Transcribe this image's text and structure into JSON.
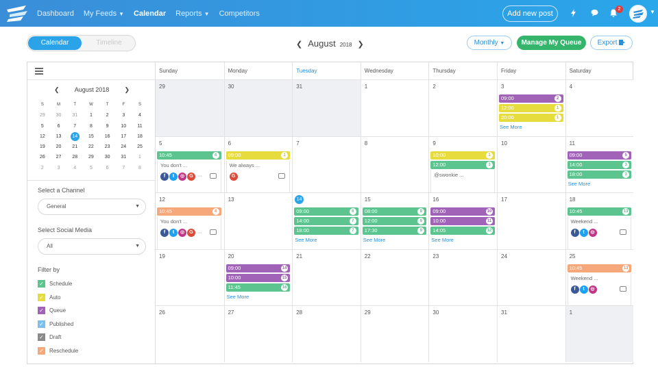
{
  "nav": {
    "dashboard": "Dashboard",
    "feeds": "My Feeds",
    "calendar": "Calendar",
    "reports": "Reports",
    "competitors": "Competitors",
    "add_post": "Add new post",
    "notif_count": "2"
  },
  "toolbar": {
    "calendar": "Calendar",
    "timeline": "Timeline",
    "month": "August",
    "year": "2018",
    "view": "Monthly",
    "manage_queue": "Manage My Queue",
    "export": "Export"
  },
  "mini_cal": {
    "title": "August 2018",
    "dows": [
      "S",
      "M",
      "T",
      "W",
      "T",
      "F",
      "S"
    ],
    "weeks": [
      [
        "29",
        "30",
        "31",
        "1",
        "2",
        "3",
        "4"
      ],
      [
        "5",
        "6",
        "7",
        "8",
        "9",
        "10",
        "11"
      ],
      [
        "12",
        "13",
        "14",
        "15",
        "16",
        "17",
        "18"
      ],
      [
        "19",
        "20",
        "21",
        "22",
        "23",
        "24",
        "25"
      ],
      [
        "26",
        "27",
        "28",
        "29",
        "30",
        "31",
        "1"
      ],
      [
        "2",
        "3",
        "4",
        "5",
        "6",
        "7",
        "8"
      ]
    ]
  },
  "sidebar": {
    "channel_label": "Select a Channel",
    "channel_value": "General",
    "social_label": "Select Social Media",
    "social_value": "All",
    "filter_label": "Filter by",
    "filters": [
      {
        "label": "Schedule",
        "color": "#5cc48e"
      },
      {
        "label": "Auto",
        "color": "#e7dc3e"
      },
      {
        "label": "Queue",
        "color": "#a163b8"
      },
      {
        "label": "Published",
        "color": "#7cc0ee"
      },
      {
        "label": "Draft",
        "color": "#8a8a8a"
      },
      {
        "label": "Reschedule",
        "color": "#f7a87a"
      }
    ]
  },
  "calendar": {
    "days": [
      "Sunday",
      "Monday",
      "Tuesday",
      "Wednesday",
      "Thursday",
      "Friday",
      "Saturday"
    ],
    "see_more": "See More",
    "weeks": [
      [
        {
          "d": "29",
          "grey": true
        },
        {
          "d": "30",
          "grey": true
        },
        {
          "d": "31",
          "grey": true
        },
        {
          "d": "1"
        },
        {
          "d": "2"
        },
        {
          "d": "3",
          "events": [
            {
              "t": "09:00",
              "n": "2",
              "c": "p"
            },
            {
              "t": "12:00",
              "n": "1",
              "c": "y"
            },
            {
              "t": "20:00",
              "n": "1",
              "c": "y"
            }
          ],
          "more": true
        },
        {
          "d": "4"
        }
      ],
      [
        {
          "d": "5",
          "events": [
            {
              "t": "10:45",
              "n": "4",
              "c": "g"
            }
          ],
          "preview": {
            "text": "You don't ...",
            "icons": [
              "fb",
              "tw",
              "ig",
              "gp"
            ],
            "dots": true
          }
        },
        {
          "d": "6",
          "events": [
            {
              "t": "09:00",
              "n": "1",
              "c": "y"
            }
          ],
          "preview": {
            "text": "We always ...",
            "icons": [
              "gp"
            ],
            "dots": false
          }
        },
        {
          "d": "7"
        },
        {
          "d": "8"
        },
        {
          "d": "9",
          "events": [
            {
              "t": "10:00",
              "n": "1",
              "c": "y"
            },
            {
              "t": "12:00",
              "n": "3",
              "c": "g"
            }
          ],
          "preview": {
            "text": "@swonkie ...",
            "icons": [],
            "dots": false,
            "nocam": true
          }
        },
        {
          "d": "10"
        },
        {
          "d": "11",
          "events": [
            {
              "t": "09:00",
              "n": "5",
              "c": "p"
            },
            {
              "t": "14:00",
              "n": "3",
              "c": "g"
            },
            {
              "t": "18:00",
              "n": "3",
              "c": "g"
            }
          ],
          "more": true
        }
      ],
      [
        {
          "d": "12",
          "events": [
            {
              "t": "10:45",
              "n": "4",
              "c": "o"
            }
          ],
          "preview": {
            "text": "You don't ...",
            "icons": [
              "fb",
              "tw",
              "ig",
              "gp"
            ],
            "dots": true
          }
        },
        {
          "d": "13"
        },
        {
          "d": "14",
          "today": true,
          "events": [
            {
              "t": "09:00",
              "n": "6",
              "c": "g"
            },
            {
              "t": "14:00",
              "n": "7",
              "c": "g"
            },
            {
              "t": "18:00",
              "n": "7",
              "c": "g"
            }
          ],
          "more": true
        },
        {
          "d": "15",
          "events": [
            {
              "t": "08:00",
              "n": "8",
              "c": "g"
            },
            {
              "t": "12:00",
              "n": "6",
              "c": "g"
            },
            {
              "t": "17:30",
              "n": "9",
              "c": "g"
            }
          ],
          "more": true
        },
        {
          "d": "16",
          "events": [
            {
              "t": "09:00",
              "n": "10",
              "c": "p"
            },
            {
              "t": "10:00",
              "n": "11",
              "c": "p"
            },
            {
              "t": "14:05",
              "n": "12",
              "c": "g"
            }
          ],
          "more": true
        },
        {
          "d": "17"
        },
        {
          "d": "18",
          "events": [
            {
              "t": "10:45",
              "n": "13",
              "c": "g"
            }
          ],
          "preview": {
            "text": "Weekend ...",
            "icons": [
              "fb",
              "tw",
              "ig"
            ],
            "dots": false
          }
        }
      ],
      [
        {
          "d": "19"
        },
        {
          "d": "20",
          "events": [
            {
              "t": "09:00",
              "n": "14",
              "c": "p"
            },
            {
              "t": "10:00",
              "n": "15",
              "c": "p"
            },
            {
              "t": "11:45",
              "n": "16",
              "c": "g"
            }
          ],
          "more": true
        },
        {
          "d": "21"
        },
        {
          "d": "22"
        },
        {
          "d": "23"
        },
        {
          "d": "24"
        },
        {
          "d": "25",
          "events": [
            {
              "t": "10:45",
              "n": "13",
              "c": "o"
            }
          ],
          "preview": {
            "text": "Weekend ...",
            "icons": [
              "fb",
              "tw",
              "ig"
            ],
            "dots": false
          }
        }
      ],
      [
        {
          "d": "26"
        },
        {
          "d": "27"
        },
        {
          "d": "28"
        },
        {
          "d": "29"
        },
        {
          "d": "30"
        },
        {
          "d": "31"
        },
        {
          "d": "1",
          "grey": true
        }
      ]
    ]
  }
}
